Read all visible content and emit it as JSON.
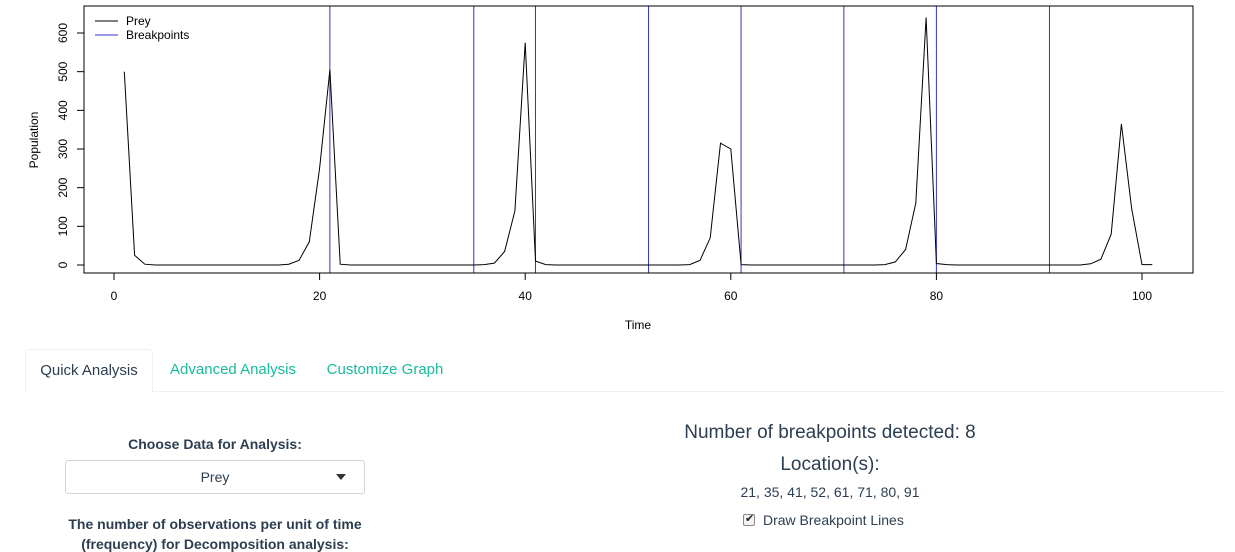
{
  "chart_data": {
    "type": "line",
    "xlabel": "Time",
    "ylabel": "Population",
    "xlim": [
      0,
      103
    ],
    "ylim": [
      -25,
      660
    ],
    "x_ticks": [
      0,
      20,
      40,
      60,
      80,
      100
    ],
    "y_ticks": [
      0,
      100,
      200,
      300,
      400,
      500,
      600
    ],
    "legend": [
      {
        "label": "Prey",
        "color": "#000000"
      },
      {
        "label": "Breakpoints",
        "color": "#3333cc"
      }
    ],
    "series": [
      {
        "name": "Prey",
        "color": "#000000",
        "x": [
          1,
          2,
          3,
          4,
          5,
          6,
          7,
          8,
          9,
          10,
          11,
          12,
          13,
          14,
          15,
          16,
          17,
          18,
          19,
          20,
          21,
          22,
          23,
          24,
          25,
          26,
          27,
          28,
          29,
          30,
          31,
          32,
          33,
          34,
          35,
          36,
          37,
          38,
          39,
          40,
          41,
          42,
          43,
          44,
          45,
          46,
          47,
          48,
          49,
          50,
          51,
          52,
          53,
          54,
          55,
          56,
          57,
          58,
          59,
          60,
          61,
          62,
          63,
          64,
          65,
          66,
          67,
          68,
          69,
          70,
          71,
          72,
          73,
          74,
          75,
          76,
          77,
          78,
          79,
          80,
          81,
          82,
          83,
          84,
          85,
          86,
          87,
          88,
          89,
          90,
          91,
          92,
          93,
          94,
          95,
          96,
          97,
          98,
          99,
          100,
          101
        ],
        "y": [
          500,
          25,
          2,
          0,
          0,
          0,
          0,
          0,
          0,
          0,
          0,
          0,
          0,
          0,
          0,
          0,
          2,
          12,
          60,
          250,
          505,
          2,
          0,
          0,
          0,
          0,
          0,
          0,
          0,
          0,
          0,
          0,
          0,
          0,
          0,
          1,
          5,
          35,
          140,
          575,
          10,
          1,
          0,
          0,
          0,
          0,
          0,
          0,
          0,
          0,
          0,
          0,
          0,
          0,
          0,
          1,
          12,
          70,
          315,
          300,
          1,
          0,
          0,
          0,
          0,
          0,
          0,
          0,
          0,
          0,
          0,
          0,
          0,
          0,
          1,
          8,
          40,
          160,
          640,
          4,
          1,
          0,
          0,
          0,
          0,
          0,
          0,
          0,
          0,
          0,
          0,
          0,
          0,
          0,
          3,
          15,
          80,
          365,
          145,
          1,
          1
        ]
      }
    ],
    "breakpoints": [
      21,
      35,
      41,
      52,
      61,
      71,
      80,
      91
    ]
  },
  "tabs": [
    {
      "label": "Quick Analysis",
      "active": true
    },
    {
      "label": "Advanced Analysis",
      "active": false
    },
    {
      "label": "Customize Graph",
      "active": false
    }
  ],
  "left_panel": {
    "choose_label": "Choose Data for Analysis:",
    "select_value": "Prey",
    "obs_label_line1": "The number of observations per unit of time",
    "obs_label_line2": "(frequency) for Decomposition analysis:"
  },
  "right_panel": {
    "breakpoints_text": "Number of breakpoints detected: 8",
    "location_label": "Location(s):",
    "location_values": "21, 35, 41, 52, 61, 71, 80, 91",
    "draw_lines_label": "Draw Breakpoint Lines",
    "draw_lines_checked": true
  }
}
